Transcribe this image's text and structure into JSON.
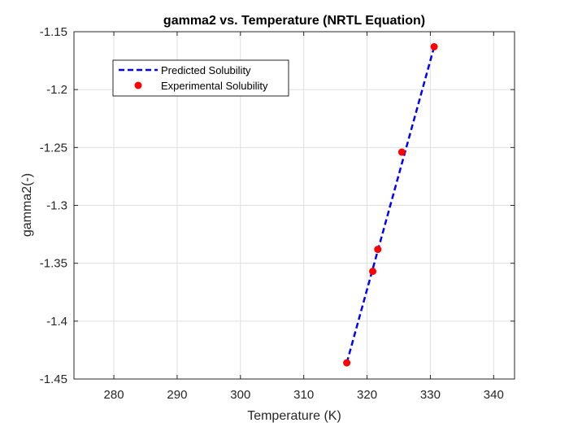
{
  "chart_data": {
    "type": "line",
    "title": "gamma2 vs. Temperature (NRTL Equation)",
    "xlabel": "Temperature (K)",
    "ylabel": "gamma2(-)",
    "xlim": [
      273.7,
      343.3
    ],
    "ylim": [
      -1.45,
      -1.15
    ],
    "xticks": [
      280,
      290,
      300,
      310,
      320,
      330,
      340
    ],
    "yticks": [
      -1.15,
      -1.2,
      -1.25,
      -1.3,
      -1.35,
      -1.4,
      -1.45
    ],
    "xtick_labels": [
      "280",
      "290",
      "300",
      "310",
      "320",
      "330",
      "340"
    ],
    "ytick_labels": [
      "-1.15",
      "-1.2",
      "-1.25",
      "-1.3",
      "-1.35",
      "-1.4",
      "-1.45"
    ],
    "grid": true,
    "legend_position": "top-left",
    "series": [
      {
        "name": "Predicted Solubility",
        "kind": "line",
        "style": "dashed",
        "color": "#0000ff",
        "x": [
          316.8,
          330.6
        ],
        "y": [
          -1.436,
          -1.163
        ]
      },
      {
        "name": "Experimental Solubility",
        "kind": "scatter",
        "marker": "circle",
        "color": "#ff0000",
        "x": [
          316.8,
          320.9,
          321.7,
          325.5,
          330.6
        ],
        "y": [
          -1.436,
          -1.357,
          -1.338,
          -1.254,
          -1.163
        ]
      }
    ]
  }
}
